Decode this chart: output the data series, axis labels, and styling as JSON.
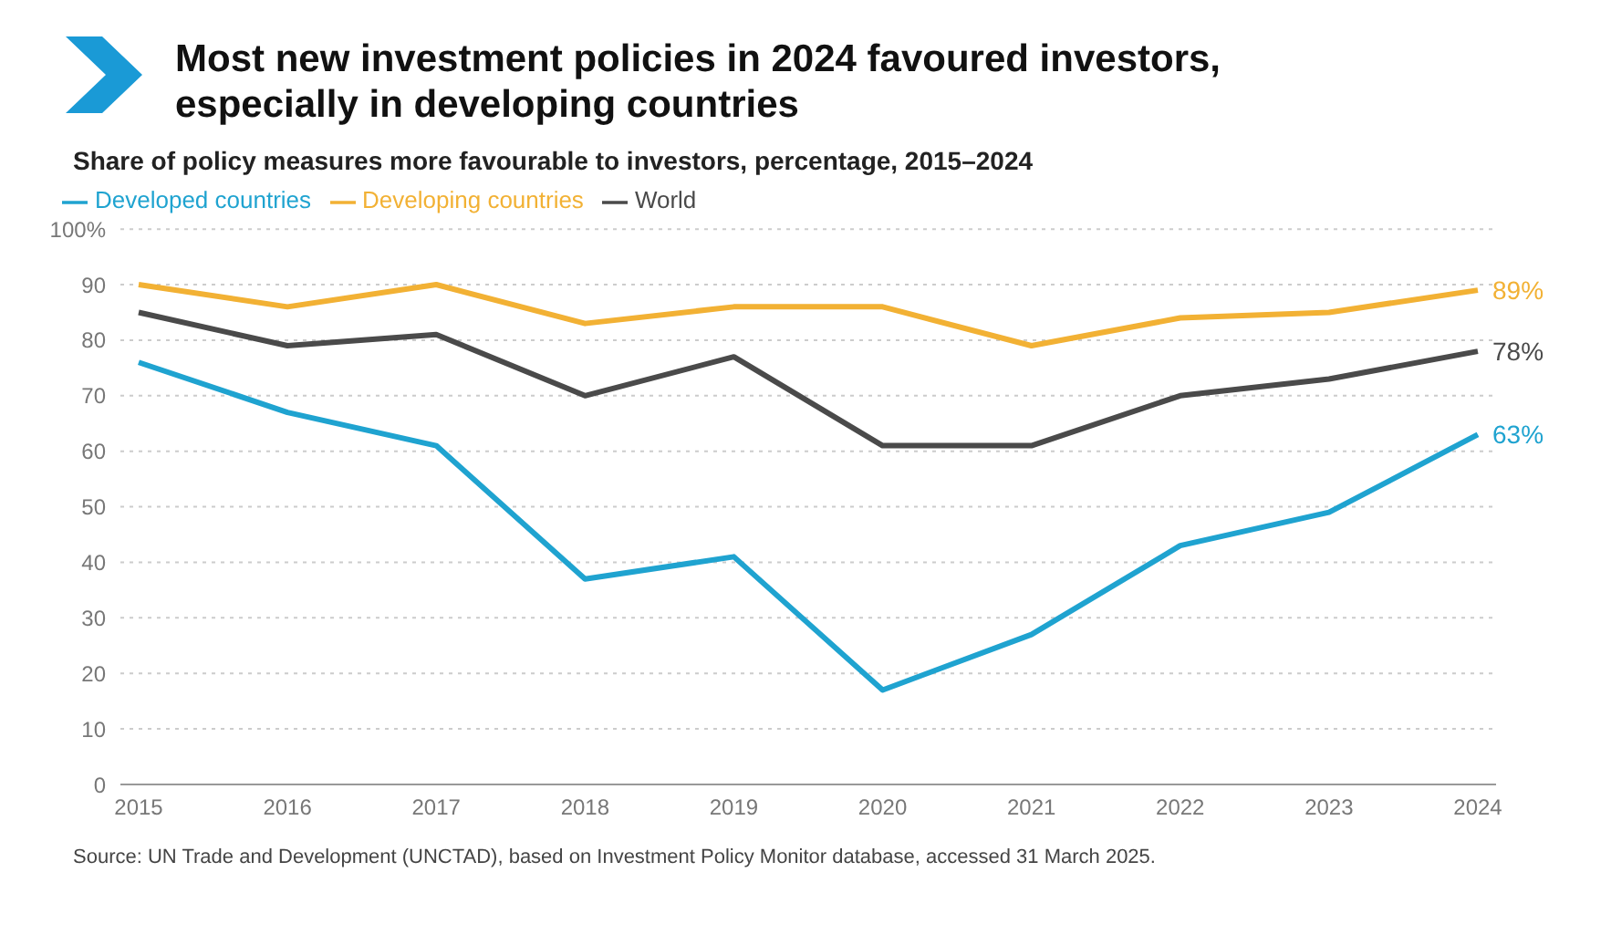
{
  "chart_data": {
    "type": "line",
    "title": "Most new investment policies in 2024 favoured investors, especially in developing countries",
    "subtitle": "Share of policy measures more favourable to investors, percentage, 2015–2024",
    "categories": [
      "2015",
      "2016",
      "2017",
      "2018",
      "2019",
      "2020",
      "2021",
      "2022",
      "2023",
      "2024"
    ],
    "series": [
      {
        "name": "Developed countries",
        "color": "#1fa3d0",
        "values": [
          76,
          67,
          61,
          37,
          41,
          17,
          27,
          43,
          49,
          63
        ],
        "value_labels": [
          null,
          null,
          null,
          null,
          null,
          null,
          null,
          null,
          null,
          "63%"
        ]
      },
      {
        "name": "Developing countries",
        "color": "#f2b134",
        "values": [
          90,
          86,
          90,
          83,
          86,
          86,
          79,
          84,
          85,
          89
        ],
        "value_labels": [
          null,
          null,
          null,
          null,
          null,
          null,
          null,
          null,
          null,
          "89%"
        ]
      },
      {
        "name": "World",
        "color": "#4a4a4a",
        "values": [
          85,
          79,
          81,
          70,
          77,
          61,
          61,
          70,
          73,
          78
        ],
        "value_labels": [
          null,
          null,
          null,
          null,
          null,
          null,
          null,
          null,
          null,
          "78%"
        ]
      }
    ],
    "ylim": [
      0,
      100
    ],
    "yticks": [
      0,
      10,
      20,
      30,
      40,
      50,
      60,
      70,
      80,
      90,
      {
        "value": 100,
        "label": "100%"
      }
    ],
    "grid": "y",
    "legend": "top left",
    "marker": "none",
    "line_style": "solid",
    "annotations": [
      "Source: UN Trade and Development (UNCTAD), based on Investment Policy Monitor database, accessed 31 March 2025."
    ]
  }
}
